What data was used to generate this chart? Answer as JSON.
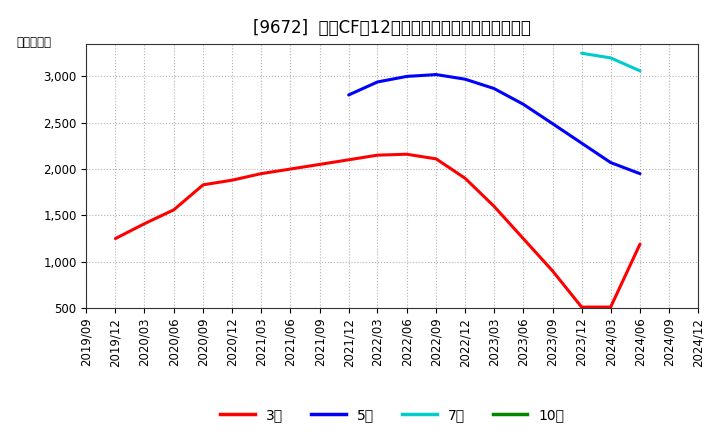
{
  "title": "[9672]  営業CFだ12か月移動合計の標準偏差の推移",
  "ylabel": "（百万円）",
  "ylim": [
    500,
    3350
  ],
  "yticks": [
    500,
    1000,
    1500,
    2000,
    2500,
    3000
  ],
  "background_color": "#ffffff",
  "plot_bg_color": "#ffffff",
  "grid_color": "#aaaaaa",
  "series": {
    "3年": {
      "color": "#ff0000",
      "x": [
        "2019/12",
        "2020/03",
        "2020/06",
        "2020/09",
        "2020/12",
        "2021/03",
        "2021/06",
        "2021/09",
        "2021/12",
        "2022/03",
        "2022/06",
        "2022/09",
        "2022/12",
        "2023/03",
        "2023/06",
        "2023/09",
        "2023/12",
        "2024/03",
        "2024/06"
      ],
      "y": [
        1250,
        1410,
        1560,
        1830,
        1880,
        1950,
        2000,
        2050,
        2100,
        2150,
        2160,
        2110,
        1900,
        1600,
        1250,
        900,
        510,
        510,
        1190
      ]
    },
    "5年": {
      "color": "#0000ff",
      "x": [
        "2021/12",
        "2022/03",
        "2022/06",
        "2022/09",
        "2022/12",
        "2023/03",
        "2023/06",
        "2023/09",
        "2023/12",
        "2024/03",
        "2024/06"
      ],
      "y": [
        2800,
        2940,
        3000,
        3020,
        2970,
        2870,
        2700,
        2490,
        2280,
        2070,
        1950
      ]
    },
    "7年": {
      "color": "#00cccc",
      "x": [
        "2023/12",
        "2024/03",
        "2024/06"
      ],
      "y": [
        3250,
        3200,
        3060
      ]
    },
    "10年": {
      "color": "#008800",
      "x": [],
      "y": []
    }
  },
  "xticks": [
    "2019/09",
    "2019/12",
    "2020/03",
    "2020/06",
    "2020/09",
    "2020/12",
    "2021/03",
    "2021/06",
    "2021/09",
    "2021/12",
    "2022/03",
    "2022/06",
    "2022/09",
    "2022/12",
    "2023/03",
    "2023/06",
    "2023/09",
    "2023/12",
    "2024/03",
    "2024/06",
    "2024/09",
    "2024/12"
  ],
  "legend_order": [
    "3年",
    "5年",
    "7年",
    "10年"
  ],
  "title_fontsize": 12,
  "axis_fontsize": 8.5,
  "legend_fontsize": 10
}
